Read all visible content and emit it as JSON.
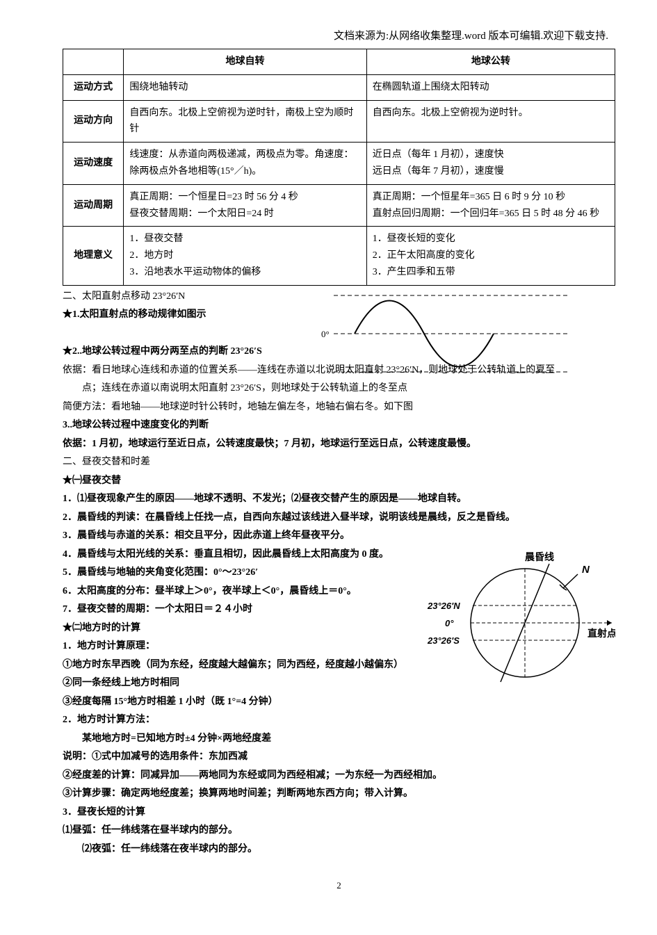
{
  "header_note": "文档来源为:从网络收集整理.word 版本可编辑.欢迎下载支持.",
  "table": {
    "col_headers": [
      "",
      "地球自转",
      "地球公转"
    ],
    "rows": [
      {
        "label": "运动方式",
        "rotation": "围绕地轴转动",
        "revolution": "在椭圆轨道上围绕太阳转动"
      },
      {
        "label": "运动方向",
        "rotation": "自西向东。北极上空俯视为逆时针，南极上空为顺时针",
        "revolution": "自西向东。北极上空俯视为逆时针。"
      },
      {
        "label": "运动速度",
        "rotation": "线速度：从赤道向两极递减，两极点为零。角速度：除两极点外各地相等(15°／h)。",
        "revolution": "近日点（每年 1 月初），速度快\n远日点（每年 7 月初），速度慢"
      },
      {
        "label": "运动周期",
        "rotation": "真正周期：一个恒星日=23 时 56 分 4 秒\n昼夜交替周期：一个太阳日=24 时",
        "revolution": "真正周期：一个恒星年=365 日 6 时 9 分 10 秒\n直射点回归周期：一个回归年=365 日 5 时 48 分 46 秒"
      },
      {
        "label": "地理意义",
        "rotation": "1．昼夜交替\n2．地方时\n3．沿地表水平运动物体的偏移",
        "revolution": "1．昼夜长短的变化\n2．正午太阳高度的变化\n3．产生四季和五带"
      }
    ]
  },
  "sine_labels": {
    "top": "23°26′N",
    "mid": "0°",
    "bottom": "23°26′S"
  },
  "body_lines": [
    {
      "t": "二、太阳直射点移动 23°26′N",
      "cls": ""
    },
    {
      "t": "★1.太阳直射点的移动规律如图示",
      "cls": "bold"
    },
    {
      "t": "",
      "cls": ""
    },
    {
      "t": "★2..地球公转过程中两分两至点的判断 23°26′S",
      "cls": "bold"
    },
    {
      "t": "依据：看日地球心连线和赤道的位置关系——连线在赤道以北说明太阳直射 23°26′N，则地球处于公转轨道上的夏至",
      "cls": ""
    },
    {
      "t": "点；连线在赤道以南说明太阳直射 23°26′S，则地球处于公转轨道上的冬至点",
      "cls": "indent1"
    },
    {
      "t": "简便方法：看地轴——地球逆时针公转时，地轴左偏左冬，地轴右偏右冬。如下图",
      "cls": ""
    },
    {
      "t": "3..地球公转过程中速度变化的判断",
      "cls": "bold"
    },
    {
      "t": "依据：1 月初，地球运行至近日点，公转速度最快；7 月初，地球运行至远日点，公转速度最慢。",
      "cls": "bold"
    },
    {
      "t": "二、昼夜交替和时差",
      "cls": ""
    },
    {
      "t": "★㈠昼夜交替",
      "cls": "bold"
    },
    {
      "t": "1．⑴昼夜现象产生的原因——地球不透明、不发光；⑵昼夜交替产生的原因是——地球自转。",
      "cls": "bold"
    },
    {
      "t": "2．晨昏线的判读：在晨昏线上任找一点，自西向东越过该线进入昼半球，说明该线是晨线，反之是昏线。",
      "cls": "bold"
    },
    {
      "t": "3．晨昏线与赤道的关系：相交且平分，因此赤道上终年昼夜平分。",
      "cls": "bold"
    },
    {
      "t": "4．晨昏线与太阳光线的关系：垂直且相切，因此晨昏线上太阳高度为 0 度。",
      "cls": "bold"
    },
    {
      "t": "5．晨昏线与地轴的夹角变化范围：0°～23°26′",
      "cls": "bold"
    },
    {
      "t": "6．太阳高度的分布：昼半球上＞0°，夜半球上＜0°，晨昏线上＝0°。",
      "cls": "bold"
    },
    {
      "t": "7．昼夜交替的周期：一个太阳日＝２４小时",
      "cls": "bold"
    },
    {
      "t": "★㈡地方时的计算",
      "cls": "bold"
    },
    {
      "t": "1．地方时计算原理：",
      "cls": "bold"
    },
    {
      "t": "①地方时东早西晚（同为东经，经度越大越偏东；同为西经，经度越小越偏东）",
      "cls": "bold"
    },
    {
      "t": "②同一条经线上地方时相同",
      "cls": "bold"
    },
    {
      "t": "③经度每隔 15°地方时相差 1 小时（既 1°=4 分钟）",
      "cls": "bold"
    },
    {
      "t": "2．地方时计算方法：",
      "cls": "bold"
    },
    {
      "t": "某地地方时=已知地方时±4 分钟×两地经度差",
      "cls": "bold indent1"
    },
    {
      "t": "说明：①式中加减号的选用条件：东加西减",
      "cls": "bold"
    },
    {
      "t": "②经度差的计算：同减异加——两地同为东经或同为西经相减；一为东经一为西经相加。",
      "cls": "bold"
    },
    {
      "t": "③计算步骤：确定两地经度差；换算两地时间差；判断两地东西方向；带入计算。",
      "cls": "bold"
    },
    {
      "t": "3．昼夜长短的计算",
      "cls": "bold"
    },
    {
      "t": "⑴昼弧：任一纬线落在昼半球内的部分。",
      "cls": "bold"
    },
    {
      "t": "⑵夜弧：任一纬线落在夜半球内的部分。",
      "cls": "bold indent1"
    }
  ],
  "circle_diagram": {
    "labels": {
      "n": "N",
      "top_lat": "23°26′N",
      "mid_lat": "0°",
      "bot_lat": "23°26′S",
      "terminator": "晨昏线",
      "subsolar": "直射点"
    },
    "colors": {
      "stroke": "#000000",
      "dash": "#000000"
    }
  },
  "page_number": "2"
}
